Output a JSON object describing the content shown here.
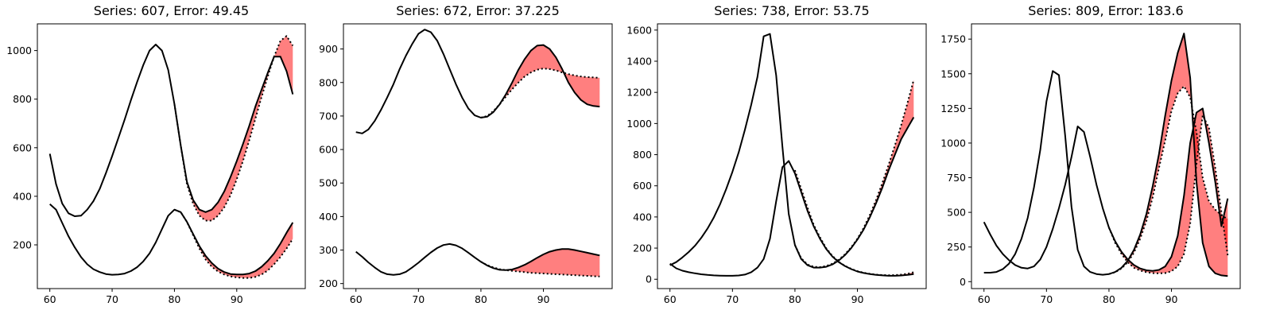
{
  "chart_data": [
    {
      "type": "line",
      "title": "Series: 607, Error: 49.45",
      "xlim": [
        58,
        101
      ],
      "ylim": [
        20,
        1110
      ],
      "xticks": [
        60,
        70,
        80,
        90
      ],
      "yticks": [
        200,
        400,
        600,
        800,
        1000
      ],
      "series": [
        {
          "role": "actual",
          "x": [
            60,
            61,
            62,
            63,
            64,
            65,
            66,
            67,
            68,
            69,
            70,
            71,
            72,
            73,
            74,
            75,
            76,
            77,
            78,
            79,
            80,
            81,
            82,
            83,
            84,
            85,
            86,
            87,
            88,
            89,
            90,
            91,
            92,
            93,
            94,
            95,
            96,
            97,
            98,
            99
          ],
          "values": [
            575,
            450,
            370,
            330,
            318,
            320,
            345,
            380,
            430,
            495,
            565,
            640,
            715,
            795,
            870,
            940,
            1000,
            1025,
            1000,
            920,
            780,
            610,
            460,
            385,
            345,
            335,
            345,
            375,
            420,
            480,
            545,
            615,
            690,
            770,
            840,
            910,
            975,
            975,
            915,
            820
          ]
        },
        {
          "role": "actual",
          "x": [
            60,
            61,
            62,
            63,
            64,
            65,
            66,
            67,
            68,
            69,
            70,
            71,
            72,
            73,
            74,
            75,
            76,
            77,
            78,
            79,
            80,
            81,
            82,
            83,
            84,
            85,
            86,
            87,
            88,
            89,
            90,
            91,
            92,
            93,
            94,
            95,
            96,
            97,
            98,
            99
          ],
          "values": [
            368,
            345,
            290,
            235,
            190,
            150,
            120,
            100,
            88,
            80,
            77,
            78,
            82,
            92,
            108,
            132,
            165,
            210,
            265,
            320,
            345,
            335,
            295,
            245,
            195,
            155,
            125,
            102,
            88,
            80,
            78,
            78,
            82,
            92,
            110,
            135,
            165,
            205,
            250,
            292
          ]
        },
        {
          "role": "forecast",
          "x": [
            80,
            81,
            82,
            83,
            84,
            85,
            86,
            87,
            88,
            89,
            90,
            91,
            92,
            93,
            94,
            95,
            96,
            97,
            98,
            99
          ],
          "values": [
            780,
            610,
            450,
            370,
            320,
            300,
            300,
            320,
            355,
            405,
            470,
            545,
            630,
            720,
            810,
            895,
            975,
            1040,
            1060,
            1020
          ]
        },
        {
          "role": "forecast",
          "x": [
            80,
            81,
            82,
            83,
            84,
            85,
            86,
            87,
            88,
            89,
            90,
            91,
            92,
            93,
            94,
            95,
            96,
            97,
            98,
            99
          ],
          "values": [
            345,
            335,
            295,
            240,
            185,
            140,
            110,
            90,
            78,
            70,
            66,
            64,
            64,
            68,
            78,
            95,
            120,
            150,
            185,
            225
          ]
        }
      ]
    },
    {
      "type": "line",
      "title": "Series: 672, Error: 37.225",
      "xlim": [
        58,
        101
      ],
      "ylim": [
        185,
        975
      ],
      "xticks": [
        60,
        70,
        80,
        90
      ],
      "yticks": [
        200,
        300,
        400,
        500,
        600,
        700,
        800,
        900
      ],
      "series": [
        {
          "role": "actual",
          "x": [
            60,
            61,
            62,
            63,
            64,
            65,
            66,
            67,
            68,
            69,
            70,
            71,
            72,
            73,
            74,
            75,
            76,
            77,
            78,
            79,
            80,
            81,
            82,
            83,
            84,
            85,
            86,
            87,
            88,
            89,
            90,
            91,
            92,
            93,
            94,
            95,
            96,
            97,
            98,
            99
          ],
          "values": [
            652,
            648,
            660,
            685,
            718,
            755,
            795,
            840,
            880,
            915,
            945,
            958,
            950,
            925,
            885,
            840,
            795,
            755,
            722,
            702,
            695,
            698,
            712,
            735,
            765,
            800,
            838,
            870,
            895,
            910,
            912,
            900,
            875,
            840,
            800,
            770,
            748,
            735,
            730,
            728
          ]
        },
        {
          "role": "actual",
          "x": [
            60,
            61,
            62,
            63,
            64,
            65,
            66,
            67,
            68,
            69,
            70,
            71,
            72,
            73,
            74,
            75,
            76,
            77,
            78,
            79,
            80,
            81,
            82,
            83,
            84,
            85,
            86,
            87,
            88,
            89,
            90,
            91,
            92,
            93,
            94,
            95,
            96,
            97,
            98,
            99
          ],
          "values": [
            295,
            280,
            263,
            248,
            235,
            228,
            226,
            228,
            235,
            248,
            262,
            278,
            293,
            306,
            315,
            318,
            314,
            305,
            292,
            278,
            265,
            254,
            246,
            241,
            240,
            242,
            248,
            256,
            266,
            277,
            287,
            295,
            300,
            303,
            303,
            300,
            296,
            292,
            288,
            284
          ]
        },
        {
          "role": "forecast",
          "x": [
            80,
            81,
            82,
            83,
            84,
            85,
            86,
            87,
            88,
            89,
            90,
            91,
            92,
            93,
            94,
            95,
            96,
            97,
            98,
            99
          ],
          "values": [
            695,
            700,
            715,
            735,
            758,
            780,
            800,
            818,
            830,
            838,
            842,
            840,
            836,
            830,
            825,
            821,
            818,
            816,
            815,
            814
          ]
        },
        {
          "role": "forecast",
          "x": [
            80,
            81,
            82,
            83,
            84,
            85,
            86,
            87,
            88,
            89,
            90,
            91,
            92,
            93,
            94,
            95,
            96,
            97,
            98,
            99
          ],
          "values": [
            265,
            255,
            248,
            243,
            240,
            238,
            236,
            234,
            232,
            231,
            230,
            229,
            228,
            227,
            226,
            225,
            224,
            223,
            222,
            221
          ]
        }
      ]
    },
    {
      "type": "line",
      "title": "Series: 738, Error: 53.75",
      "xlim": [
        58,
        101
      ],
      "ylim": [
        -60,
        1640
      ],
      "xticks": [
        60,
        70,
        80,
        90
      ],
      "yticks": [
        0,
        200,
        400,
        600,
        800,
        1000,
        1200,
        1400,
        1600
      ],
      "series": [
        {
          "role": "actual",
          "x": [
            60,
            61,
            62,
            63,
            64,
            65,
            66,
            67,
            68,
            69,
            70,
            71,
            72,
            73,
            74,
            75,
            76,
            77,
            78,
            79,
            80,
            81,
            82,
            83,
            84,
            85,
            86,
            87,
            88,
            89,
            90,
            91,
            92,
            93,
            94,
            95,
            96,
            97,
            98,
            99
          ],
          "values": [
            90,
            110,
            140,
            175,
            215,
            265,
            325,
            395,
            480,
            580,
            690,
            815,
            960,
            1120,
            1300,
            1560,
            1575,
            1310,
            850,
            420,
            220,
            130,
            90,
            75,
            75,
            80,
            95,
            120,
            155,
            200,
            255,
            320,
            400,
            490,
            590,
            700,
            800,
            900,
            970,
            1040
          ]
        },
        {
          "role": "actual",
          "x": [
            60,
            61,
            62,
            63,
            64,
            65,
            66,
            67,
            68,
            69,
            70,
            71,
            72,
            73,
            74,
            75,
            76,
            77,
            78,
            79,
            80,
            81,
            82,
            83,
            84,
            85,
            86,
            87,
            88,
            89,
            90,
            91,
            92,
            93,
            94,
            95,
            96,
            97,
            98,
            99
          ],
          "values": [
            100,
            70,
            55,
            45,
            38,
            32,
            28,
            25,
            23,
            22,
            22,
            24,
            30,
            45,
            75,
            130,
            260,
            500,
            720,
            760,
            680,
            560,
            440,
            340,
            260,
            195,
            145,
            110,
            85,
            65,
            50,
            40,
            33,
            28,
            25,
            22,
            22,
            24,
            28,
            33
          ]
        },
        {
          "role": "forecast",
          "x": [
            80,
            81,
            82,
            83,
            84,
            85,
            86,
            87,
            88,
            89,
            90,
            91,
            92,
            93,
            94,
            95,
            96,
            97,
            98,
            99
          ],
          "values": [
            220,
            135,
            95,
            80,
            78,
            85,
            100,
            125,
            160,
            205,
            260,
            330,
            415,
            510,
            620,
            735,
            860,
            990,
            1130,
            1280
          ]
        },
        {
          "role": "forecast",
          "x": [
            80,
            81,
            82,
            83,
            84,
            85,
            86,
            87,
            88,
            89,
            90,
            91,
            92,
            93,
            94,
            95,
            96,
            97,
            98,
            99
          ],
          "values": [
            700,
            580,
            460,
            350,
            270,
            200,
            150,
            112,
            86,
            67,
            52,
            42,
            35,
            30,
            27,
            26,
            27,
            30,
            35,
            45
          ]
        }
      ]
    },
    {
      "type": "line",
      "title": "Series: 809, Error: 183.6",
      "xlim": [
        58,
        101
      ],
      "ylim": [
        -50,
        1860
      ],
      "xticks": [
        60,
        70,
        80,
        90
      ],
      "yticks": [
        0,
        250,
        500,
        750,
        1000,
        1250,
        1500,
        1750
      ],
      "series": [
        {
          "role": "actual",
          "x": [
            60,
            61,
            62,
            63,
            64,
            65,
            66,
            67,
            68,
            69,
            70,
            71,
            72,
            73,
            74,
            75,
            76,
            77,
            78,
            79,
            80,
            81,
            82,
            83,
            84,
            85,
            86,
            87,
            88,
            89,
            90,
            91,
            92,
            93,
            94,
            95,
            96,
            97,
            98,
            99
          ],
          "values": [
            430,
            340,
            260,
            200,
            155,
            120,
            100,
            95,
            110,
            160,
            250,
            380,
            530,
            700,
            900,
            1120,
            1080,
            900,
            700,
            530,
            390,
            290,
            215,
            160,
            120,
            95,
            82,
            78,
            85,
            110,
            180,
            330,
            620,
            1000,
            1220,
            1250,
            1000,
            720,
            400,
            600
          ]
        },
        {
          "role": "actual",
          "x": [
            60,
            61,
            62,
            63,
            64,
            65,
            66,
            67,
            68,
            69,
            70,
            71,
            72,
            73,
            74,
            75,
            76,
            77,
            78,
            79,
            80,
            81,
            82,
            83,
            84,
            85,
            86,
            87,
            88,
            89,
            90,
            91,
            92,
            93,
            94,
            95,
            96,
            97,
            98,
            99
          ],
          "values": [
            65,
            65,
            70,
            90,
            130,
            200,
            310,
            460,
            680,
            950,
            1300,
            1520,
            1490,
            1050,
            540,
            230,
            110,
            70,
            55,
            50,
            55,
            70,
            100,
            150,
            230,
            340,
            490,
            690,
            920,
            1200,
            1450,
            1650,
            1790,
            1470,
            720,
            280,
            110,
            60,
            45,
            40
          ]
        },
        {
          "role": "forecast",
          "x": [
            80,
            81,
            82,
            83,
            84,
            85,
            86,
            87,
            88,
            89,
            90,
            91,
            92,
            93,
            94,
            95,
            96,
            97,
            98,
            99
          ],
          "values": [
            390,
            280,
            200,
            140,
            100,
            80,
            68,
            62,
            60,
            62,
            75,
            110,
            200,
            420,
            850,
            1200,
            1110,
            820,
            500,
            190
          ]
        },
        {
          "role": "forecast",
          "x": [
            80,
            81,
            82,
            83,
            84,
            85,
            86,
            87,
            88,
            89,
            90,
            91,
            92,
            93,
            94,
            95,
            96,
            97,
            98,
            99
          ],
          "values": [
            55,
            68,
            95,
            140,
            210,
            310,
            440,
            610,
            820,
            1020,
            1230,
            1360,
            1410,
            1330,
            1080,
            750,
            580,
            520,
            480,
            450
          ]
        }
      ]
    }
  ]
}
